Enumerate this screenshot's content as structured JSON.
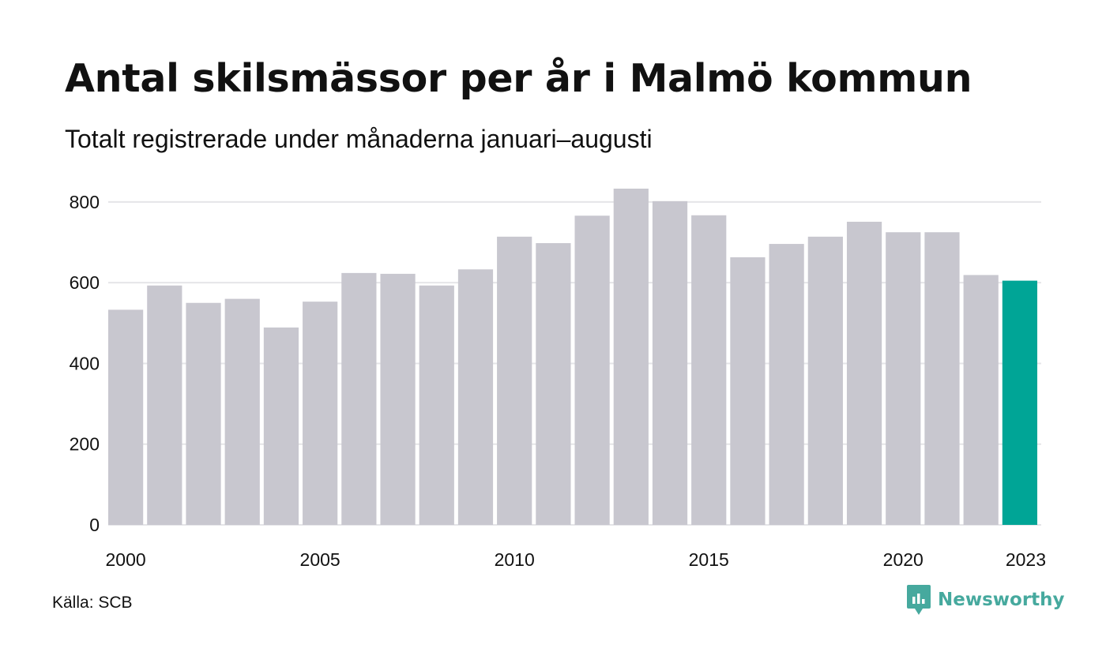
{
  "title": "Antal skilsmässor per år i Malmö kommun",
  "subtitle": "Totalt registrerade under månaderna januari–augusti",
  "source": "Källa: SCB",
  "brand": {
    "name": "Newsworthy",
    "logo_icon": "newsworthy-chart-bubble-icon",
    "color": "#46a99e"
  },
  "colors": {
    "bar": "#c8c7cf",
    "highlight": "#00a596",
    "grid": "#e5e5e8"
  },
  "chart_data": {
    "type": "bar",
    "title": "Antal skilsmässor per år i Malmö kommun",
    "subtitle": "Totalt registrerade under månaderna januari–augusti",
    "categories": [
      "2000",
      "2001",
      "2002",
      "2003",
      "2004",
      "2005",
      "2006",
      "2007",
      "2008",
      "2009",
      "2010",
      "2011",
      "2012",
      "2013",
      "2014",
      "2015",
      "2016",
      "2017",
      "2018",
      "2019",
      "2020",
      "2021",
      "2022",
      "2023"
    ],
    "values": [
      533,
      593,
      550,
      560,
      489,
      553,
      624,
      622,
      593,
      633,
      714,
      698,
      766,
      833,
      802,
      767,
      663,
      696,
      714,
      751,
      725,
      725,
      619,
      605
    ],
    "highlight_category": "2023",
    "x_tick_labels": [
      "2000",
      "2005",
      "2010",
      "2015",
      "2020",
      "2023"
    ],
    "y_ticks": [
      0,
      200,
      400,
      600,
      800
    ],
    "ylim": [
      0,
      833
    ],
    "grid": true,
    "legend": false
  }
}
